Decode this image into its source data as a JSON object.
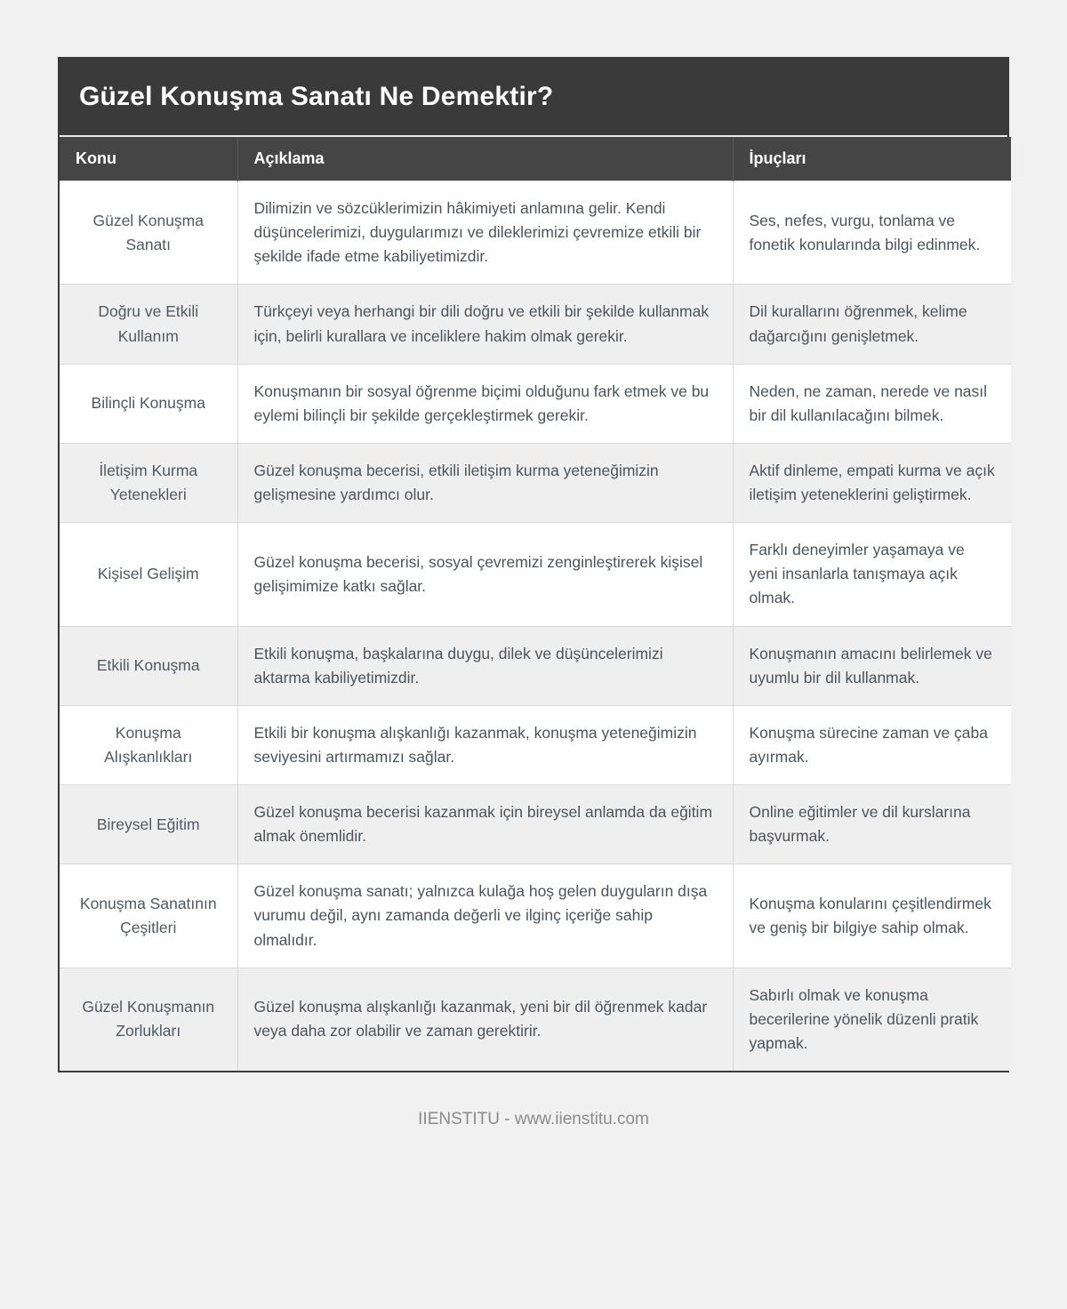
{
  "page": {
    "title": "Güzel Konuşma Sanatı Ne Demektir?",
    "footer": "IIENSTITU - www.iienstitu.com"
  },
  "colors": {
    "title_bar": "#3a3a3a",
    "header_bg": "#454545",
    "row_alt_bg": "#efefef",
    "body_text": "#4c545b",
    "page_bg": "#f1f1f2"
  },
  "table": {
    "headers": [
      "Konu",
      "Açıklama",
      "İpuçları"
    ],
    "rows": [
      {
        "konu": "Güzel Konuşma Sanatı",
        "aciklama": "Dilimizin ve sözcüklerimizin hâkimiyeti anlamına gelir. Kendi düşüncelerimizi, duygularımızı ve dileklerimizi çevremize etkili bir şekilde ifade etme kabiliyetimizdir.",
        "ipuclari": "Ses, nefes, vurgu, tonlama ve fonetik konularında bilgi edinmek."
      },
      {
        "konu": "Doğru ve Etkili Kullanım",
        "aciklama": "Türkçeyi veya herhangi bir dili doğru ve etkili bir şekilde kullanmak için, belirli kurallara ve inceliklere hakim olmak gerekir.",
        "ipuclari": "Dil kurallarını öğrenmek, kelime dağarcığını genişletmek."
      },
      {
        "konu": "Bilinçli Konuşma",
        "aciklama": "Konuşmanın bir sosyal öğrenme biçimi olduğunu fark etmek ve bu eylemi bilinçli bir şekilde gerçekleştirmek gerekir.",
        "ipuclari": "Neden, ne zaman, nerede ve nasıl bir dil kullanılacağını bilmek."
      },
      {
        "konu": "İletişim Kurma Yetenekleri",
        "aciklama": "Güzel konuşma becerisi, etkili iletişim kurma yeteneğimizin gelişmesine yardımcı olur.",
        "ipuclari": "Aktif dinleme, empati kurma ve açık iletişim yeteneklerini geliştirmek."
      },
      {
        "konu": "Kişisel Gelişim",
        "aciklama": "Güzel konuşma becerisi, sosyal çevremizi zenginleştirerek kişisel gelişimimize katkı sağlar.",
        "ipuclari": "Farklı deneyimler yaşamaya ve yeni insanlarla tanışmaya açık olmak."
      },
      {
        "konu": "Etkili Konuşma",
        "aciklama": "Etkili konuşma, başkalarına duygu, dilek ve düşüncelerimizi aktarma kabiliyetimizdir.",
        "ipuclari": "Konuşmanın amacını belirlemek ve uyumlu bir dil kullanmak."
      },
      {
        "konu": "Konuşma Alışkanlıkları",
        "aciklama": "Etkili bir konuşma alışkanlığı kazanmak, konuşma yeteneğimizin seviyesini artırmamızı sağlar.",
        "ipuclari": "Konuşma sürecine zaman ve çaba ayırmak."
      },
      {
        "konu": "Bireysel Eğitim",
        "aciklama": "Güzel konuşma becerisi kazanmak için bireysel anlamda da eğitim almak önemlidir.",
        "ipuclari": "Online eğitimler ve dil kurslarına başvurmak."
      },
      {
        "konu": "Konuşma Sanatının Çeşitleri",
        "aciklama": "Güzel konuşma sanatı; yalnızca kulağa hoş gelen duyguların dışa vurumu değil, aynı zamanda değerli ve ilginç içeriğe sahip olmalıdır.",
        "ipuclari": "Konuşma konularını çeşitlendirmek ve geniş bir bilgiye sahip olmak."
      },
      {
        "konu": "Güzel Konuşmanın Zorlukları",
        "aciklama": "Güzel konuşma alışkanlığı kazanmak, yeni bir dil öğrenmek kadar veya daha zor olabilir ve zaman gerektirir.",
        "ipuclari": "Sabırlı olmak ve konuşma becerilerine yönelik düzenli pratik yapmak."
      }
    ]
  }
}
